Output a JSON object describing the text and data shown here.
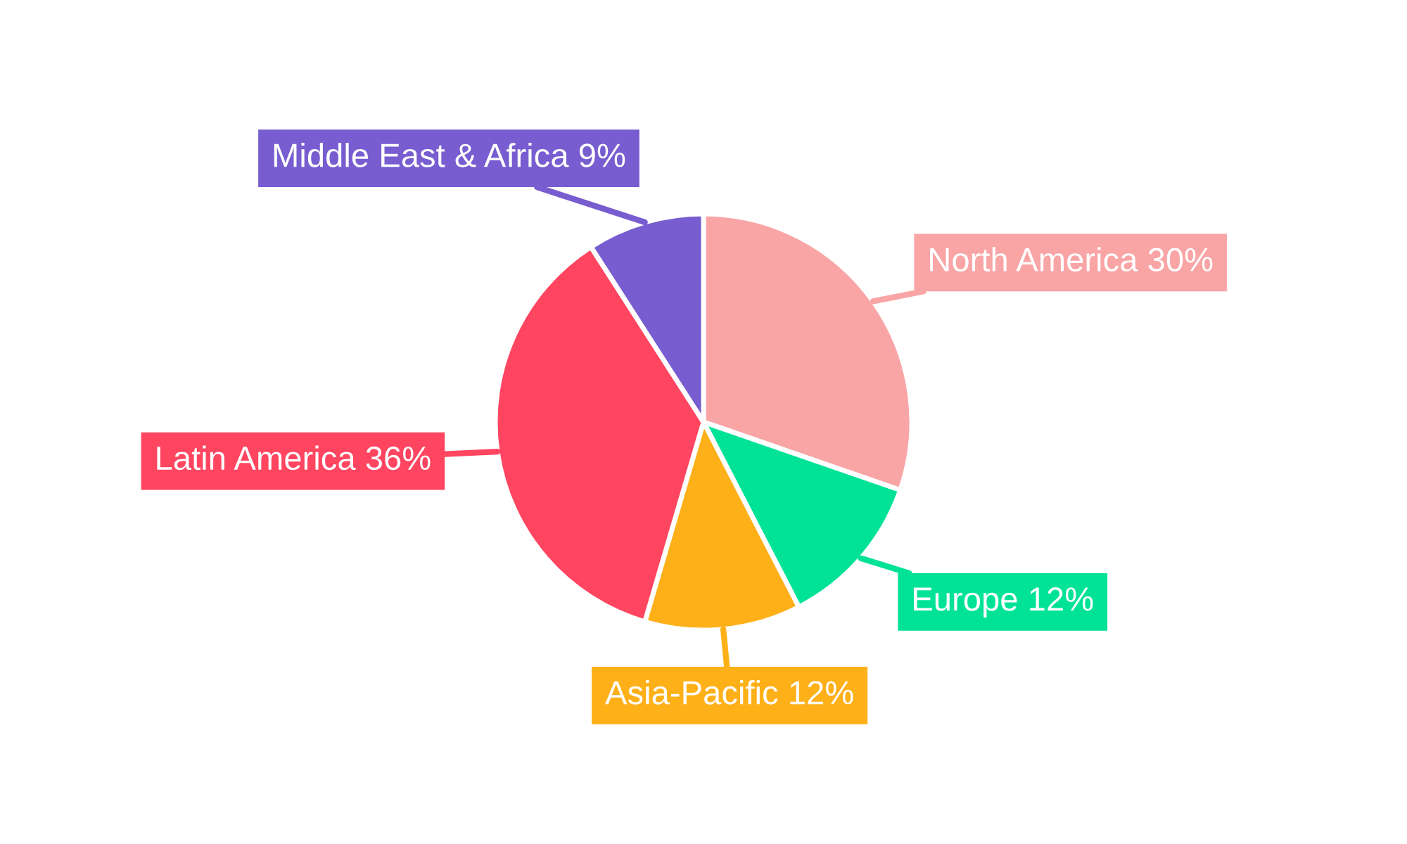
{
  "chart_data": {
    "type": "pie",
    "categories": [
      "North America",
      "Europe",
      "Asia-Pacific",
      "Latin America",
      "Middle East & Africa"
    ],
    "values": [
      30,
      12,
      12,
      36,
      9
    ],
    "value_labels": [
      "30%",
      "12%",
      "12%",
      "36%",
      "9%"
    ],
    "colors": [
      "#f9a4a5",
      "#00e396",
      "#feb019",
      "#ff4560",
      "#775dd0"
    ],
    "legend": false
  }
}
